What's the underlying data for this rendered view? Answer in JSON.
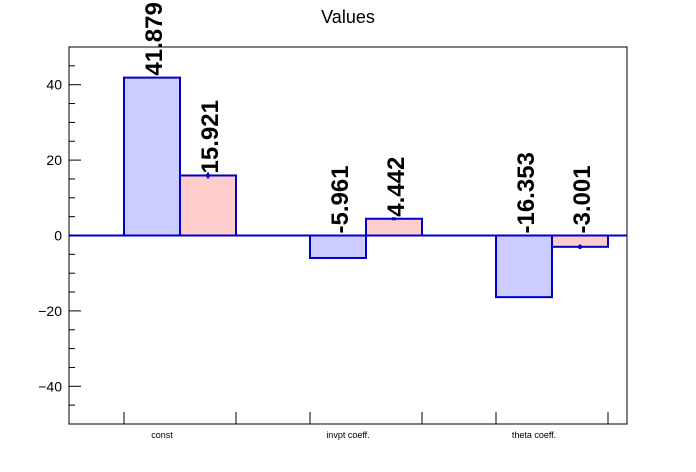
{
  "chart_data": {
    "type": "bar",
    "title": "Values",
    "xlabel": "",
    "ylabel": "",
    "categories": [
      "const",
      "invpt coeff.",
      "theta coeff."
    ],
    "series": [
      {
        "values": [
          41.879,
          -5.961,
          -16.353
        ],
        "labels": [
          "41.879",
          "-5.961",
          "-16.353"
        ],
        "color": "#ccccff",
        "edge_color": "#0000cc"
      },
      {
        "values": [
          15.921,
          4.442,
          -3.001
        ],
        "labels": [
          "15.921",
          "4.442",
          "-3.001"
        ],
        "color": "#ffcccc",
        "edge_color": "#0000cc",
        "errors": [
          0.8,
          0.1,
          0.6
        ]
      }
    ],
    "ylim": [
      -50,
      50
    ],
    "yticks": [
      -40,
      -20,
      0,
      20,
      40
    ],
    "ytick_labels": [
      "−40",
      "−20",
      "0",
      "20",
      "40"
    ],
    "grid": false,
    "legend": "none",
    "zero_line_color": "#0000cc"
  }
}
